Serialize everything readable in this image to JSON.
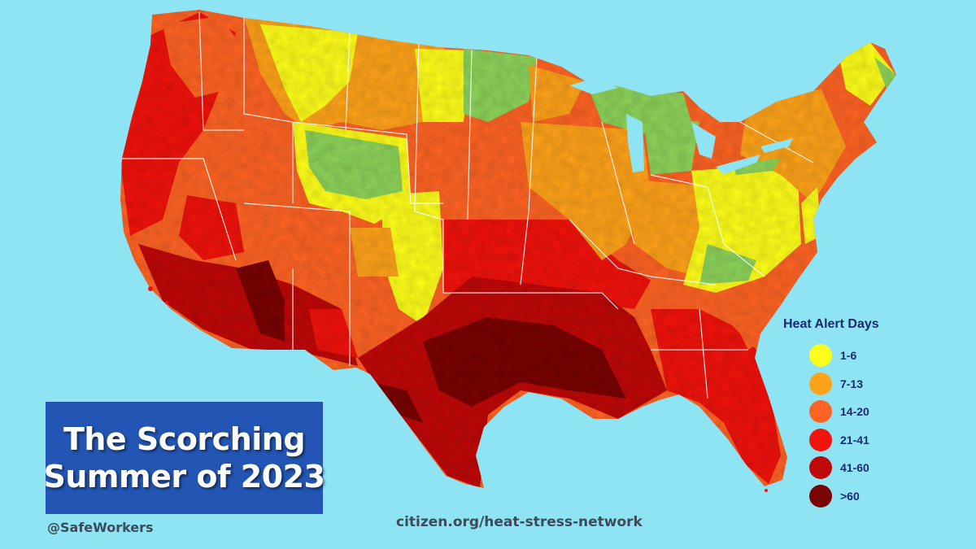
{
  "title": {
    "line1": "The Scorching",
    "line2": "Summer of 2023"
  },
  "handle": "@SafeWorkers",
  "source": "citizen.org/heat-stress-network",
  "legend": {
    "title": "Heat Alert Days",
    "items": [
      {
        "label": "1-6",
        "color": "#ffff1a"
      },
      {
        "label": "7-13",
        "color": "#ffa31a"
      },
      {
        "label": "14-20",
        "color": "#ff6424"
      },
      {
        "label": "21-41",
        "color": "#f2130c"
      },
      {
        "label": "41-60",
        "color": "#c00808"
      },
      {
        "label": ">60",
        "color": "#7a0303"
      }
    ]
  },
  "colors": {
    "background": "#8ee4f2",
    "green": "#8ed45a",
    "title_box": "#2355b4"
  }
}
